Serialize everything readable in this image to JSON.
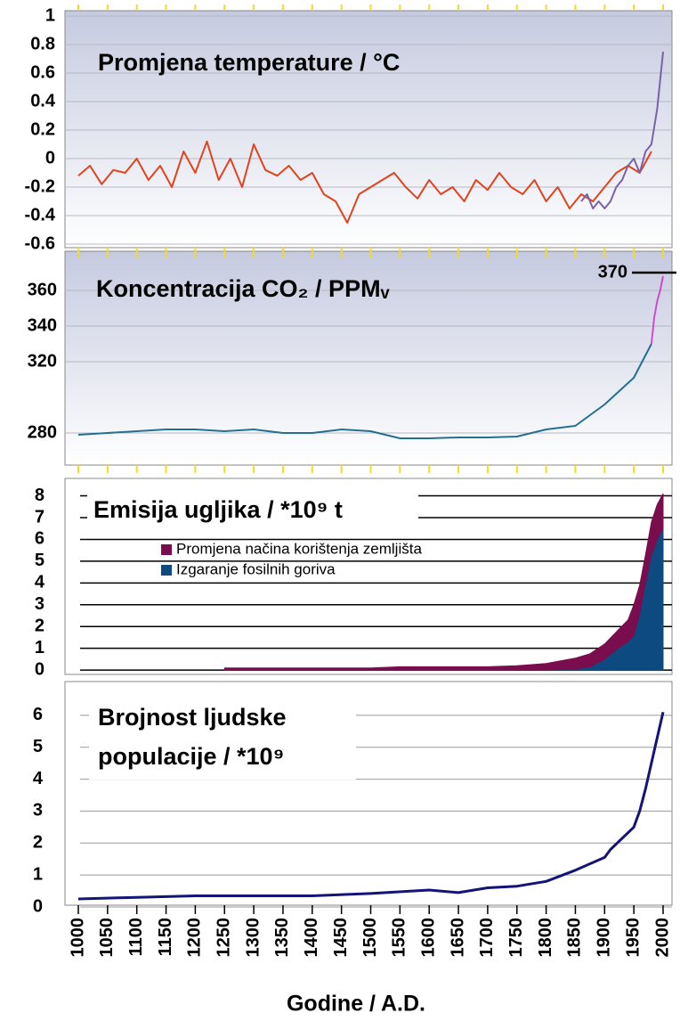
{
  "chart_data": [
    {
      "type": "line",
      "title": "Promjena temperature / °C",
      "xlim": [
        1000,
        2000
      ],
      "ylim": [
        -0.6,
        1
      ],
      "yticks": [
        {
          "value": -0.6,
          "label": "-0.6"
        },
        {
          "value": -0.4,
          "label": "-0.4"
        },
        {
          "value": -0.2,
          "label": "-0.2"
        },
        0,
        0.2,
        0.4,
        0.6,
        0.8,
        1
      ],
      "grid": true,
      "series": [
        {
          "color": "#e2431c",
          "x": [
            1000,
            1020,
            1040,
            1060,
            1080,
            1100,
            1120,
            1140,
            1160,
            1180,
            1200,
            1220,
            1240,
            1260,
            1280,
            1300,
            1320,
            1340,
            1360,
            1380,
            1400,
            1420,
            1440,
            1460,
            1480,
            1500,
            1520,
            1540,
            1560,
            1580,
            1600,
            1620,
            1640,
            1660,
            1680,
            1700,
            1720,
            1740,
            1760,
            1780,
            1800,
            1820,
            1840,
            1860,
            1880,
            1900,
            1920,
            1940,
            1960,
            1980
          ],
          "values": [
            -0.12,
            -0.05,
            -0.18,
            -0.08,
            -0.1,
            0.0,
            -0.15,
            -0.05,
            -0.2,
            0.05,
            -0.1,
            0.12,
            -0.15,
            0.0,
            -0.2,
            0.1,
            -0.08,
            -0.12,
            -0.05,
            -0.15,
            -0.1,
            -0.25,
            -0.3,
            -0.45,
            -0.25,
            -0.2,
            -0.15,
            -0.1,
            -0.2,
            -0.28,
            -0.15,
            -0.25,
            -0.2,
            -0.3,
            -0.15,
            -0.22,
            -0.1,
            -0.2,
            -0.25,
            -0.15,
            -0.3,
            -0.2,
            -0.35,
            -0.25,
            -0.3,
            -0.2,
            -0.1,
            -0.05,
            -0.1,
            0.05
          ]
        },
        {
          "color": "#7a62a6",
          "x": [
            1860,
            1870,
            1880,
            1890,
            1900,
            1910,
            1920,
            1930,
            1940,
            1950,
            1960,
            1970,
            1980,
            1990,
            2000
          ],
          "values": [
            -0.3,
            -0.25,
            -0.35,
            -0.3,
            -0.35,
            -0.3,
            -0.2,
            -0.15,
            -0.05,
            0.0,
            -0.1,
            0.05,
            0.1,
            0.35,
            0.75
          ]
        }
      ]
    },
    {
      "type": "line",
      "title": "Koncentracija CO₂ / PPMᵥ",
      "xlim": [
        1000,
        2000
      ],
      "ylim": [
        263,
        378
      ],
      "yticks": [
        280,
        320,
        340,
        360
      ],
      "grid": true,
      "annotation": {
        "text": "370",
        "y": 370
      },
      "series": [
        {
          "color": "#23708f",
          "x": [
            1000,
            1050,
            1100,
            1150,
            1200,
            1250,
            1300,
            1350,
            1400,
            1450,
            1500,
            1550,
            1600,
            1650,
            1700,
            1750,
            1800,
            1850,
            1900,
            1950,
            1980
          ],
          "values": [
            279,
            280,
            281,
            282,
            282,
            281,
            282,
            280,
            280,
            282,
            281,
            277,
            277,
            277.5,
            277.5,
            278,
            282,
            284,
            296,
            311,
            330
          ]
        },
        {
          "color": "#d04ad0",
          "x": [
            1980,
            1985,
            1990,
            1995,
            2000
          ],
          "values": [
            330,
            345,
            354,
            360,
            368
          ]
        }
      ]
    },
    {
      "type": "area",
      "title": "Emisija ugljika / *10⁹ t",
      "xlim": [
        1000,
        2000
      ],
      "ylim": [
        -0.2,
        8.8
      ],
      "yticks": [
        0,
        1,
        2,
        3,
        4,
        5,
        6,
        7,
        8
      ],
      "grid": true,
      "x": [
        1250,
        1300,
        1350,
        1400,
        1450,
        1500,
        1550,
        1600,
        1650,
        1700,
        1750,
        1800,
        1850,
        1875,
        1900,
        1920,
        1940,
        1950,
        1960,
        1970,
        1980,
        1990,
        2000
      ],
      "series": [
        {
          "name": "Promjena načina korištenja zemljišta",
          "color": "#7a0d4e",
          "values": [
            0.1,
            0.1,
            0.1,
            0.1,
            0.1,
            0.1,
            0.15,
            0.15,
            0.15,
            0.15,
            0.2,
            0.3,
            0.5,
            0.6,
            0.7,
            0.8,
            1.0,
            1.4,
            1.3,
            1.3,
            1.5,
            1.6,
            1.6
          ]
        },
        {
          "name": "Izgaranje fosilnih goriva",
          "color": "#0d4a80",
          "values": [
            0,
            0,
            0,
            0,
            0,
            0,
            0,
            0,
            0,
            0,
            0,
            0,
            0.05,
            0.15,
            0.5,
            0.95,
            1.3,
            1.6,
            2.6,
            4.0,
            5.3,
            6.0,
            6.5
          ]
        }
      ]
    },
    {
      "type": "line",
      "title_lines": [
        "Brojnost ljudske",
        "populacije / *10⁹"
      ],
      "xlim": [
        1000,
        2000
      ],
      "ylim": [
        0,
        7
      ],
      "yticks": [
        0,
        1,
        2,
        3,
        4,
        5,
        6
      ],
      "grid": true,
      "xticks": [
        1000,
        1050,
        1100,
        1150,
        1200,
        1250,
        1300,
        1350,
        1400,
        1450,
        1500,
        1550,
        1600,
        1650,
        1700,
        1750,
        1800,
        1850,
        1900,
        1950,
        2000
      ],
      "xlabel": "Godine / A.D.",
      "series": [
        {
          "color": "#141478",
          "x": [
            1000,
            1100,
            1200,
            1300,
            1400,
            1500,
            1600,
            1650,
            1700,
            1750,
            1800,
            1850,
            1900,
            1910,
            1950,
            1960,
            1970,
            1990,
            2000
          ],
          "values": [
            0.25,
            0.3,
            0.35,
            0.35,
            0.35,
            0.42,
            0.53,
            0.45,
            0.6,
            0.65,
            0.8,
            1.15,
            1.55,
            1.8,
            2.5,
            3.0,
            3.7,
            5.3,
            6.1
          ]
        }
      ]
    }
  ]
}
